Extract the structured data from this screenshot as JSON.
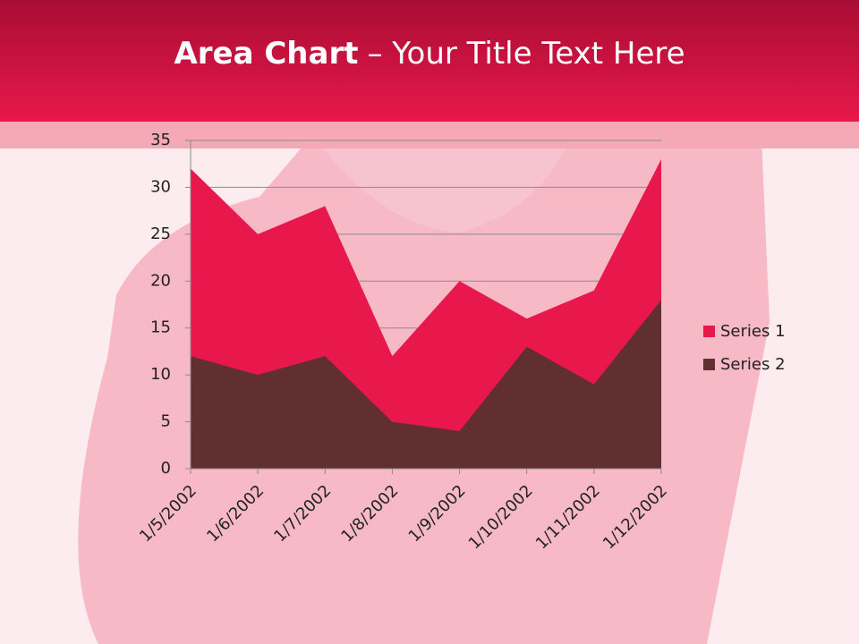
{
  "chart_data": {
    "type": "area",
    "title": {
      "bold": "Area Chart",
      "rest": "– Your Title Text Here"
    },
    "categories": [
      "1/5/2002",
      "1/6/2002",
      "1/7/2002",
      "1/8/2002",
      "1/9/2002",
      "1/10/2002",
      "1/11/2002",
      "1/12/2002"
    ],
    "series": [
      {
        "name": "Series 1",
        "color": "#e8174c",
        "values": [
          32,
          25,
          28,
          12,
          20,
          16,
          19,
          33
        ]
      },
      {
        "name": "Series 2",
        "color": "#622f31",
        "values": [
          12,
          10,
          12,
          5,
          4,
          13,
          9,
          18
        ]
      }
    ],
    "ylim": [
      0,
      35
    ],
    "yticks": [
      0,
      5,
      10,
      15,
      20,
      25,
      30,
      35
    ],
    "grid": true,
    "legend": "right"
  }
}
